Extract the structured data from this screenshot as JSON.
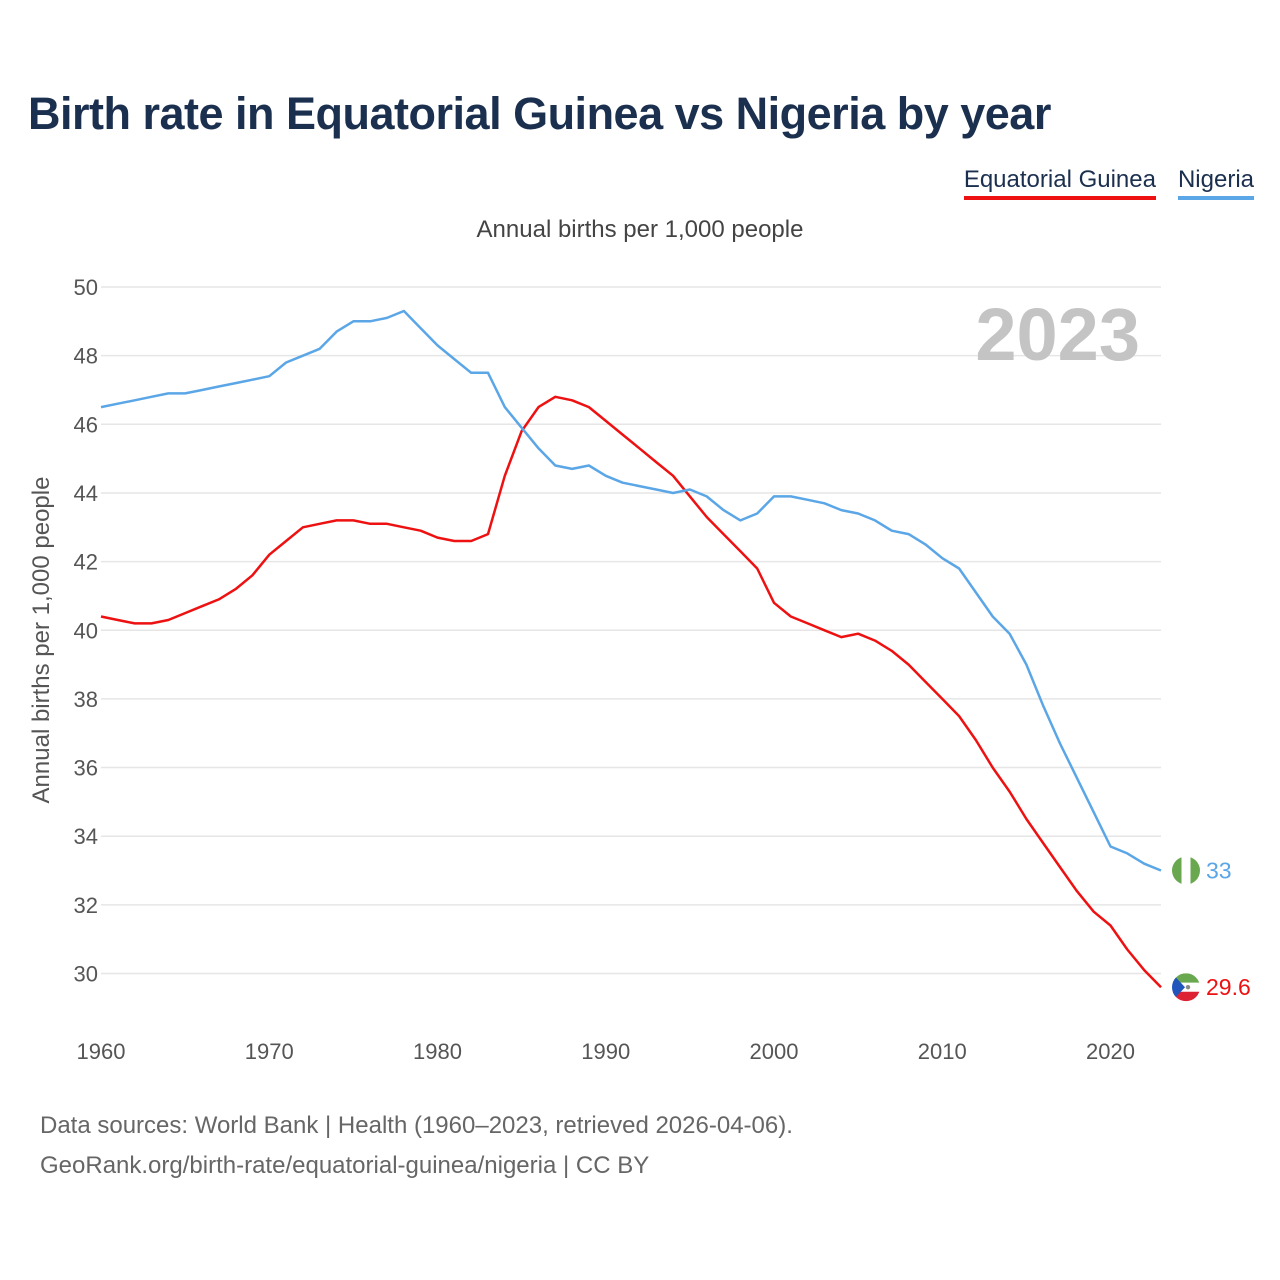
{
  "title": "Birth rate in Equatorial Guinea vs Nigeria by year",
  "legend": [
    {
      "name": "Equatorial Guinea",
      "color": "#ee1111"
    },
    {
      "name": "Nigeria",
      "color": "#5ba6e6"
    }
  ],
  "footer": {
    "source": "Data sources: World Bank | Health (1960–2023, retrieved 2026-04-06).",
    "credit": "GeoRank.org/birth-rate/equatorial-guinea/nigeria | CC BY"
  },
  "chart_data": {
    "type": "line",
    "title": "Birth rate in Equatorial Guinea vs Nigeria by year",
    "subtitle": "Annual births per 1,000 people",
    "ylabel": "Annual births per 1,000 people",
    "xlabel": "",
    "year_label": "2023",
    "xlim": [
      1960,
      2023
    ],
    "ylim": [
      28.5,
      50
    ],
    "x_ticks": [
      1960,
      1970,
      1980,
      1990,
      2000,
      2010,
      2020
    ],
    "y_ticks": [
      30,
      32,
      34,
      36,
      38,
      40,
      42,
      44,
      46,
      48,
      50
    ],
    "grid": true,
    "x": [
      1960,
      1961,
      1962,
      1963,
      1964,
      1965,
      1966,
      1967,
      1968,
      1969,
      1970,
      1971,
      1972,
      1973,
      1974,
      1975,
      1976,
      1977,
      1978,
      1979,
      1980,
      1981,
      1982,
      1983,
      1984,
      1985,
      1986,
      1987,
      1988,
      1989,
      1990,
      1991,
      1992,
      1993,
      1994,
      1995,
      1996,
      1997,
      1998,
      1999,
      2000,
      2001,
      2002,
      2003,
      2004,
      2005,
      2006,
      2007,
      2008,
      2009,
      2010,
      2011,
      2012,
      2013,
      2014,
      2015,
      2016,
      2017,
      2018,
      2019,
      2020,
      2021,
      2022,
      2023
    ],
    "series": [
      {
        "name": "Equatorial Guinea",
        "color": "#ee1111",
        "end_label": "29.6",
        "values": [
          40.4,
          40.3,
          40.2,
          40.2,
          40.3,
          40.5,
          40.7,
          40.9,
          41.2,
          41.6,
          42.2,
          42.6,
          43.0,
          43.1,
          43.2,
          43.2,
          43.1,
          43.1,
          43.0,
          42.9,
          42.7,
          42.6,
          42.6,
          42.8,
          44.5,
          45.8,
          46.5,
          46.8,
          46.7,
          46.5,
          46.1,
          45.7,
          45.3,
          44.9,
          44.5,
          43.9,
          43.3,
          42.8,
          42.3,
          41.8,
          40.8,
          40.4,
          40.2,
          40.0,
          39.8,
          39.9,
          39.7,
          39.4,
          39.0,
          38.5,
          38.0,
          37.5,
          36.8,
          36.0,
          35.3,
          34.5,
          33.8,
          33.1,
          32.4,
          31.8,
          31.4,
          30.7,
          30.1,
          29.6
        ]
      },
      {
        "name": "Nigeria",
        "color": "#5ba6e6",
        "end_label": "33",
        "values": [
          46.5,
          46.6,
          46.7,
          46.8,
          46.9,
          46.9,
          47.0,
          47.1,
          47.2,
          47.3,
          47.4,
          47.8,
          48.0,
          48.2,
          48.7,
          49.0,
          49.0,
          49.1,
          49.3,
          48.8,
          48.3,
          47.9,
          47.5,
          47.5,
          46.5,
          45.9,
          45.3,
          44.8,
          44.7,
          44.8,
          44.5,
          44.3,
          44.2,
          44.1,
          44.0,
          44.1,
          43.9,
          43.5,
          43.2,
          43.4,
          43.9,
          43.9,
          43.8,
          43.7,
          43.5,
          43.4,
          43.2,
          42.9,
          42.8,
          42.5,
          42.1,
          41.8,
          41.1,
          40.4,
          39.9,
          39.0,
          37.8,
          36.7,
          35.7,
          34.7,
          33.7,
          33.5,
          33.2,
          33.0
        ]
      }
    ]
  }
}
